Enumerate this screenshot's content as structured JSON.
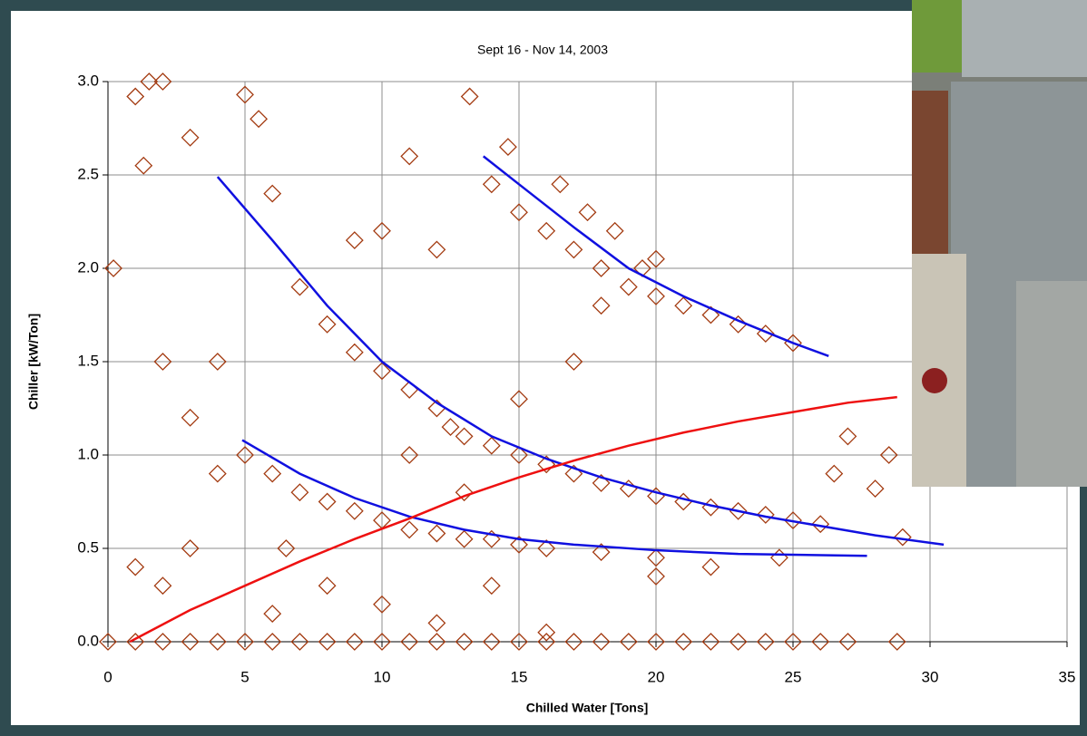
{
  "chart_data": {
    "type": "scatter",
    "title": "Sept 16 - Nov 14, 2003",
    "x_label": "Chilled Water [Tons]",
    "y_label": "Chiller [kW/Ton]",
    "xlim": [
      0,
      35
    ],
    "ylim": [
      0,
      3
    ],
    "xticks": [
      0,
      5,
      10,
      15,
      20,
      25,
      30,
      35
    ],
    "yticks": [
      {
        "value": 0,
        "label": "0.0"
      },
      {
        "value": 0.5,
        "label": "0.5"
      },
      {
        "value": 1,
        "label": "1.0"
      },
      {
        "value": 1.5,
        "label": "1.5"
      },
      {
        "value": 2,
        "label": "2.0"
      },
      {
        "value": 2.5,
        "label": "2.5"
      },
      {
        "value": 3,
        "label": "3.0"
      }
    ],
    "grid": true,
    "series": [
      {
        "type": "scatter",
        "color": "#a33a10",
        "x": [
          0,
          1,
          2,
          3,
          4,
          5,
          6,
          7,
          8,
          9,
          10,
          11,
          12,
          13,
          14,
          15,
          16,
          17,
          18,
          19,
          20,
          21,
          22,
          23,
          24,
          25,
          26,
          27,
          28.8,
          14,
          15,
          16,
          16.5,
          17,
          17.5,
          18,
          18.5,
          19,
          19.5,
          20,
          21,
          22,
          23,
          24,
          25,
          18,
          20,
          8,
          9,
          10,
          11,
          12,
          12.5,
          13,
          14,
          15,
          16,
          17,
          18,
          19,
          20,
          21,
          22,
          23,
          24,
          25,
          26,
          5,
          6,
          7,
          8,
          9,
          10,
          11,
          12,
          13,
          14,
          15,
          16,
          18,
          20,
          1,
          1.5,
          2,
          0.2,
          1.3,
          3,
          5,
          5.5,
          6,
          13.2,
          14.6,
          2,
          3,
          4,
          1,
          2,
          6,
          8,
          10,
          12,
          16,
          14,
          4,
          7,
          9,
          11,
          10,
          12,
          27,
          28,
          28.5,
          29,
          26.5,
          22,
          20,
          24.5,
          11,
          13,
          15,
          17,
          6.5,
          3
        ],
        "values": [
          0,
          0,
          0,
          0,
          0,
          0,
          0,
          0,
          0,
          0,
          0,
          0,
          0,
          0,
          0,
          0,
          0,
          0,
          0,
          0,
          0,
          0,
          0,
          0,
          0,
          0,
          0,
          0,
          0,
          2.45,
          2.3,
          2.2,
          2.45,
          2.1,
          2.3,
          2.0,
          2.2,
          1.9,
          2.0,
          1.85,
          1.8,
          1.75,
          1.7,
          1.65,
          1.6,
          1.8,
          2.05,
          1.7,
          1.55,
          1.45,
          1.35,
          1.25,
          1.15,
          1.1,
          1.05,
          1.0,
          0.95,
          0.9,
          0.85,
          0.82,
          0.78,
          0.75,
          0.72,
          0.7,
          0.68,
          0.65,
          0.63,
          1.0,
          0.9,
          0.8,
          0.75,
          0.7,
          0.65,
          0.6,
          0.58,
          0.55,
          0.55,
          0.52,
          0.5,
          0.48,
          0.45,
          2.92,
          3.0,
          3.0,
          2.0,
          2.55,
          2.7,
          2.93,
          2.8,
          2.4,
          2.92,
          2.65,
          1.5,
          1.2,
          0.9,
          0.4,
          0.3,
          0.15,
          0.3,
          0.2,
          0.1,
          0.05,
          0.3,
          1.5,
          1.9,
          2.15,
          2.6,
          2.2,
          2.1,
          1.1,
          0.82,
          1.0,
          0.56,
          0.9,
          0.4,
          0.35,
          0.45,
          1.0,
          0.8,
          1.3,
          1.5,
          0.5,
          0.5
        ]
      },
      {
        "type": "line",
        "color": "#1010e0",
        "x": [
          4,
          6,
          8,
          10,
          12,
          14,
          16,
          18,
          20,
          22,
          24,
          26,
          28,
          30.5
        ],
        "values": [
          2.49,
          2.15,
          1.8,
          1.5,
          1.28,
          1.1,
          0.98,
          0.88,
          0.8,
          0.73,
          0.67,
          0.62,
          0.57,
          0.52
        ]
      },
      {
        "type": "line",
        "color": "#1010e0",
        "x": [
          13.7,
          15,
          17,
          19,
          21,
          23,
          25,
          26.3
        ],
        "values": [
          2.6,
          2.45,
          2.22,
          2.0,
          1.85,
          1.72,
          1.6,
          1.53
        ]
      },
      {
        "type": "line",
        "color": "#1010e0",
        "x": [
          4.9,
          7,
          9,
          11,
          13,
          15,
          17,
          20,
          23,
          27.7
        ],
        "values": [
          1.08,
          0.9,
          0.77,
          0.67,
          0.6,
          0.55,
          0.52,
          0.49,
          0.47,
          0.46
        ]
      },
      {
        "type": "line",
        "color": "#ee1010",
        "x": [
          0.8,
          3,
          5,
          7,
          9,
          11,
          13,
          15,
          17,
          19,
          21,
          23,
          25,
          27,
          28.8
        ],
        "values": [
          0,
          0.17,
          0.3,
          0.43,
          0.55,
          0.66,
          0.78,
          0.88,
          0.97,
          1.05,
          1.12,
          1.18,
          1.23,
          1.28,
          1.31
        ]
      }
    ]
  }
}
